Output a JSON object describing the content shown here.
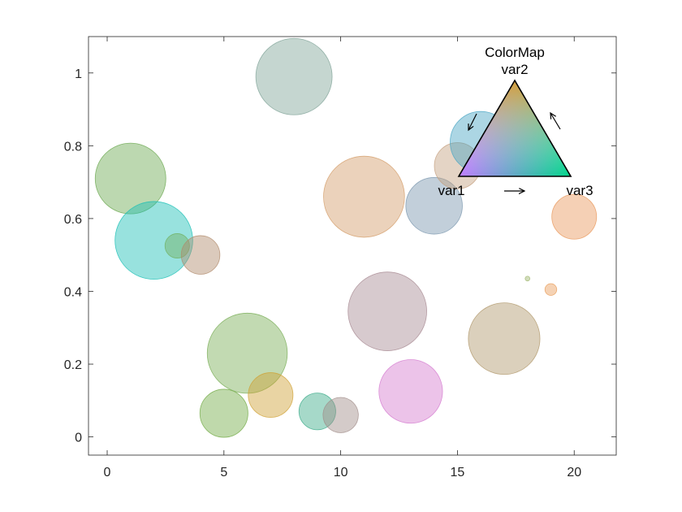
{
  "chart_data": {
    "type": "scatter",
    "xlim": [
      -0.8,
      21.8
    ],
    "ylim": [
      -0.05,
      1.1
    ],
    "xticks": [
      0,
      5,
      10,
      15,
      20
    ],
    "xtick_labels": [
      "0",
      "5",
      "10",
      "15",
      "20"
    ],
    "yticks": [
      0,
      0.2,
      0.4,
      0.6,
      0.8,
      1
    ],
    "ytick_labels": [
      "0",
      "0.2",
      "0.4",
      "0.6",
      "0.8",
      "1"
    ],
    "grid": false,
    "bubble_fill_opacity": 0.45,
    "points": [
      {
        "x": 1,
        "y": 0.71,
        "size": 1.5,
        "color": "#6aa84f"
      },
      {
        "x": 2,
        "y": 0.54,
        "size": 1.65,
        "color": "#1abfb5"
      },
      {
        "x": 3,
        "y": 0.525,
        "size": 0.52,
        "color": "#70b060"
      },
      {
        "x": 4,
        "y": 0.5,
        "size": 0.82,
        "color": "#b08a6a"
      },
      {
        "x": 5,
        "y": 0.065,
        "size": 1.02,
        "color": "#72aa45"
      },
      {
        "x": 6,
        "y": 0.23,
        "size": 1.7,
        "color": "#78ad55"
      },
      {
        "x": 7,
        "y": 0.115,
        "size": 0.95,
        "color": "#cfa032"
      },
      {
        "x": 8,
        "y": 0.99,
        "size": 1.62,
        "color": "#7fa397"
      },
      {
        "x": 9,
        "y": 0.07,
        "size": 0.78,
        "color": "#3aaa88"
      },
      {
        "x": 10,
        "y": 0.06,
        "size": 0.75,
        "color": "#a08c88"
      },
      {
        "x": 11,
        "y": 0.66,
        "size": 1.72,
        "color": "#d39c68"
      },
      {
        "x": 12,
        "y": 0.345,
        "size": 1.67,
        "color": "#a78a92"
      },
      {
        "x": 13,
        "y": 0.125,
        "size": 1.35,
        "color": "#d57acf"
      },
      {
        "x": 14,
        "y": 0.635,
        "size": 1.2,
        "color": "#7895ad"
      },
      {
        "x": 15,
        "y": 0.745,
        "size": 0.98,
        "color": "#c49f7e"
      },
      {
        "x": 16,
        "y": 0.81,
        "size": 1.3,
        "color": "#48a5c4"
      },
      {
        "x": 17,
        "y": 0.27,
        "size": 1.52,
        "color": "#b0976a"
      },
      {
        "x": 18,
        "y": 0.435,
        "size": 0.1,
        "color": "#9cb46a"
      },
      {
        "x": 19,
        "y": 0.405,
        "size": 0.25,
        "color": "#e89c58"
      },
      {
        "x": 20,
        "y": 0.605,
        "size": 0.95,
        "color": "#e8975a"
      }
    ],
    "colormap_legend": {
      "title": "ColorMap",
      "labels": {
        "top": "var2",
        "left": "var1",
        "right": "var3"
      },
      "colors": {
        "top": "#e89a20",
        "left": "#c07cff",
        "right": "#00d68a"
      }
    }
  }
}
